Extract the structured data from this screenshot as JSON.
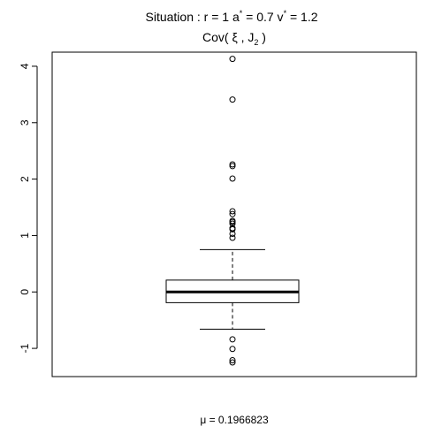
{
  "chart_data": {
    "type": "boxplot",
    "title_line1": {
      "prefix": "Situation :  r = 1 a",
      "sup1": "*",
      "mid": " = 0.7 v",
      "sup2": "*",
      "suffix": " = 1.2"
    },
    "title_line2": {
      "prefix": "Cov( ξ , J",
      "sub": "2",
      "suffix": " )"
    },
    "xlabel": "μ = 0.1966823",
    "ylim": [
      -1.5,
      4.25
    ],
    "yticks": [
      -1,
      0,
      1,
      2,
      3,
      4
    ],
    "ytick_labels": [
      "-1",
      "0",
      "1",
      "2",
      "3",
      "4"
    ],
    "box": {
      "q1": -0.19,
      "median": 0.0,
      "q3": 0.21,
      "whisker_low": -0.66,
      "whisker_high": 0.75
    },
    "outliers": [
      4.13,
      3.41,
      2.26,
      2.23,
      2.01,
      1.43,
      1.38,
      1.26,
      1.24,
      1.21,
      1.13,
      1.11,
      1.03,
      0.96,
      -0.84,
      -1.01,
      -1.21,
      -1.25
    ]
  }
}
